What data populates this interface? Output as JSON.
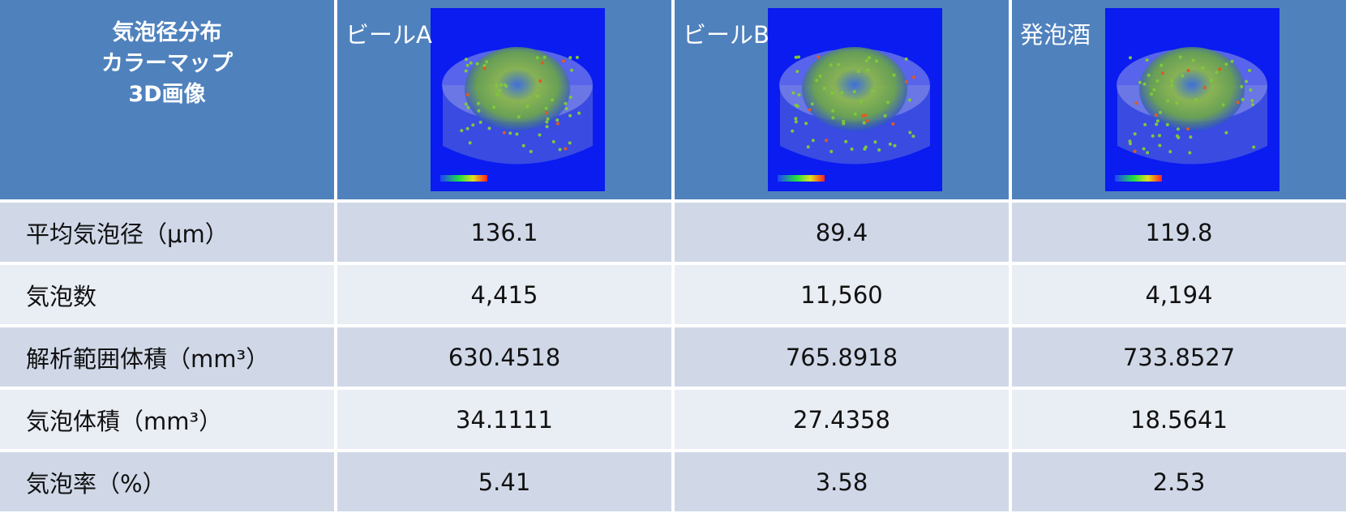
{
  "header": {
    "title": [
      "気泡径分布",
      "カラーマップ",
      "3D画像"
    ],
    "columns": [
      "ビールA",
      "ビールB",
      "発泡酒"
    ]
  },
  "table": {
    "rows": [
      [
        "平均気泡径（μm）",
        "136.1",
        "89.4",
        "119.8"
      ],
      [
        "気泡数",
        "4,415",
        "11,560",
        "4,194"
      ],
      [
        "解析範囲体積（mm³）",
        "630.4518",
        "765.8918",
        "733.8527"
      ],
      [
        "気泡体積（mm³）",
        "34.1111",
        "27.4358",
        "18.5641"
      ],
      [
        "気泡率（%）",
        "5.41",
        "3.58",
        "2.53"
      ]
    ]
  }
}
